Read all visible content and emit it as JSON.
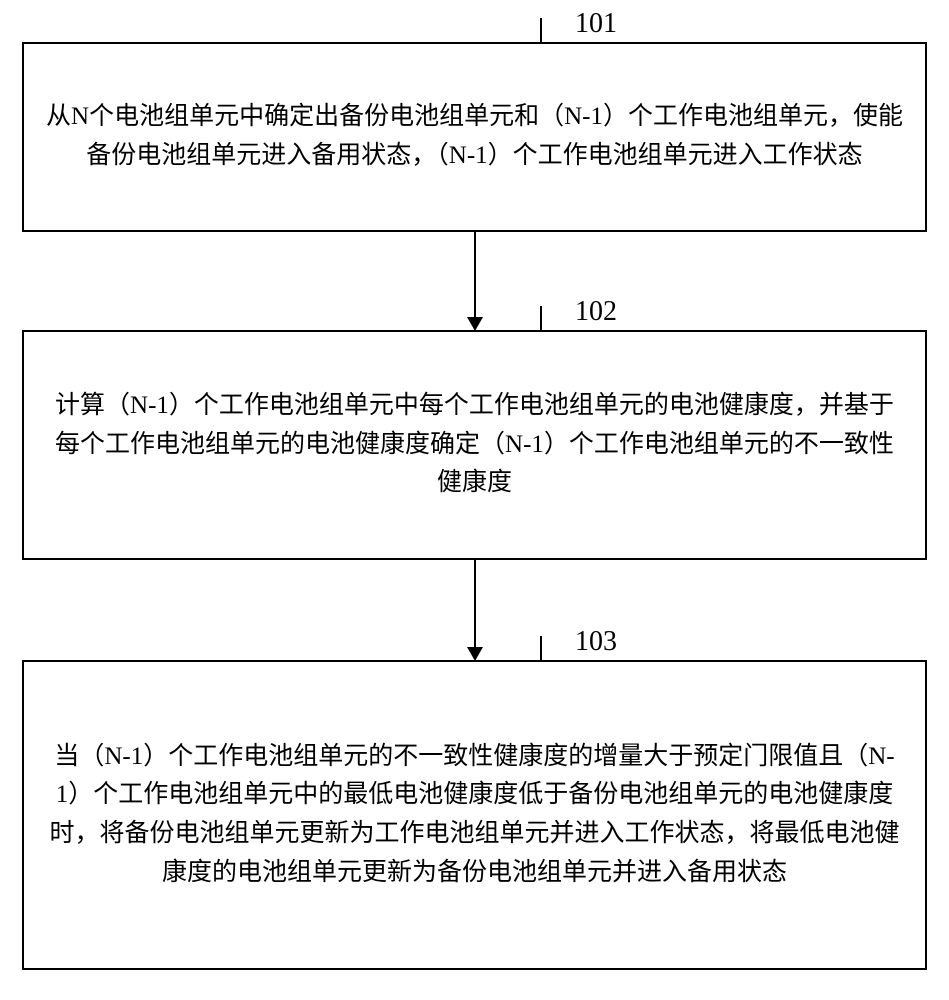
{
  "flowchart": {
    "type": "flowchart",
    "nodes": [
      {
        "id": "101",
        "label": "101",
        "text": "从N个电池组单元中确定出备份电池组单元和（N-1）个工作电池组单元，使能备份电池组单元进入备用状态，（N-1）个工作电池组单元进入工作状态",
        "box_color": "#ffffff",
        "border_color": "#000000",
        "border_width": 2,
        "text_color": "#000000",
        "fontsize": 25
      },
      {
        "id": "102",
        "label": "102",
        "text": "计算（N-1）个工作电池组单元中每个工作电池组单元的电池健康度，并基于每个工作电池组单元的电池健康度确定（N-1）个工作电池组单元的不一致性健康度",
        "box_color": "#ffffff",
        "border_color": "#000000",
        "border_width": 2,
        "text_color": "#000000",
        "fontsize": 25
      },
      {
        "id": "103",
        "label": "103",
        "text": "当（N-1）个工作电池组单元的不一致性健康度的增量大于预定门限值且（N-1）个工作电池组单元中的最低电池健康度低于备份电池组单元的电池健康度时，将备份电池组单元更新为工作电池组单元并进入工作状态，将最低电池健康度的电池组单元更新为备份电池组单元并进入备用状态",
        "box_color": "#ffffff",
        "border_color": "#000000",
        "border_width": 2,
        "text_color": "#000000",
        "fontsize": 25
      }
    ],
    "edges": [
      {
        "from": "101",
        "to": "102",
        "arrow_color": "#000000"
      },
      {
        "from": "102",
        "to": "103",
        "arrow_color": "#000000"
      }
    ],
    "background_color": "#ffffff",
    "label_fontsize": 28,
    "label_color": "#000000"
  }
}
